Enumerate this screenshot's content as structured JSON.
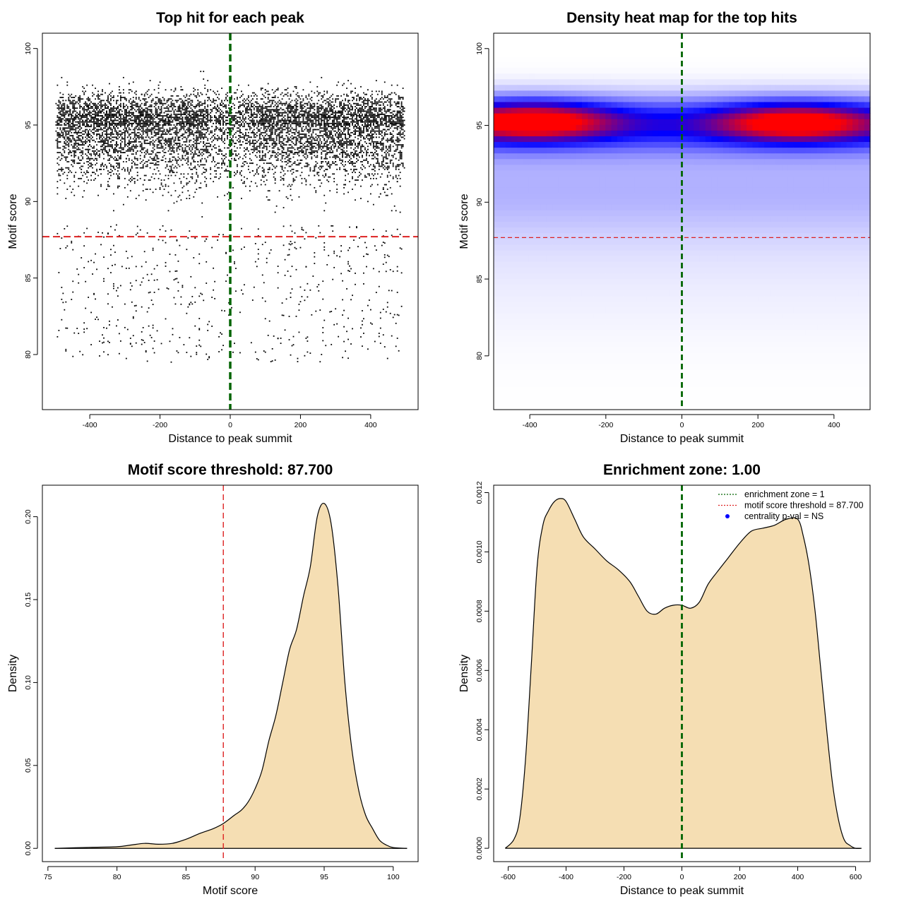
{
  "chart_data": [
    {
      "id": "scatter",
      "type": "scatter",
      "title": "Top hit for each peak",
      "xlabel": "Distance to peak summit",
      "ylabel": "Motif score",
      "xlim": [
        -535,
        535
      ],
      "ylim": [
        76.4,
        101.0
      ],
      "xticks": [
        -400,
        -200,
        0,
        200,
        400
      ],
      "yticks": [
        80,
        85,
        90,
        95,
        100
      ],
      "hlines": [
        {
          "y": 87.7,
          "color": "#dd2222",
          "style": "dashed"
        }
      ],
      "vlines": [
        {
          "x": 0,
          "color": "#006400",
          "style": "dashed"
        }
      ],
      "point_color": "#000000",
      "distribution": {
        "x_range": [
          -495,
          495
        ],
        "score_center": 95.0,
        "score_max": 100,
        "score_min": 76.5,
        "n_points": 9000,
        "seed": 7
      }
    },
    {
      "id": "heatmap",
      "type": "heatmap",
      "title": "Density heat map for the top hits",
      "xlabel": "Distance to peak summit",
      "ylabel": "Motif score",
      "xlim": [
        -495,
        495
      ],
      "ylim": [
        76.5,
        101.0
      ],
      "xticks": [
        -400,
        -200,
        0,
        200,
        400
      ],
      "yticks": [
        80,
        85,
        90,
        95,
        100
      ],
      "hlines": [
        {
          "y": 87.7,
          "color": "#dd2222",
          "style": "dashed"
        }
      ],
      "vlines": [
        {
          "x": 0,
          "color": "#006400",
          "style": "dashed"
        }
      ],
      "colors": [
        "#ffffff",
        "#0000ff",
        "#ff0000"
      ],
      "hotspots": [
        {
          "x": -395,
          "y": 95.3,
          "weight": 1.0
        },
        {
          "x": 300,
          "y": 95.2,
          "weight": 0.95
        }
      ],
      "band": {
        "y": 95.1,
        "weight": 0.7
      }
    },
    {
      "id": "density-score",
      "type": "area",
      "title": "Motif score threshold: 87.700",
      "xlabel": "Motif score",
      "ylabel": "Density",
      "xlim": [
        74.6,
        101.8
      ],
      "ylim": [
        -0.008,
        0.219
      ],
      "xticks": [
        75,
        80,
        85,
        90,
        95,
        100
      ],
      "yticks": [
        0.0,
        0.05,
        0.1,
        0.15,
        0.2
      ],
      "ytick_labels": [
        "0.00",
        "0.05",
        "0.10",
        "0.15",
        "0.20"
      ],
      "fill": "#f5deb3",
      "vlines": [
        {
          "x": 87.7,
          "color": "#dd2222",
          "style": "dashed"
        }
      ],
      "x": [
        75.5,
        78,
        80,
        81,
        82,
        83,
        84,
        85,
        86,
        87,
        87.7,
        88.5,
        89,
        89.5,
        90,
        90.5,
        91,
        91.5,
        92,
        92.5,
        93,
        93.5,
        94,
        94.5,
        95,
        95.5,
        96,
        96.5,
        97,
        97.5,
        98,
        98.5,
        99,
        99.5,
        100,
        101
      ],
      "y": [
        0.0,
        0.0006,
        0.001,
        0.002,
        0.003,
        0.0025,
        0.003,
        0.0055,
        0.009,
        0.012,
        0.015,
        0.02,
        0.023,
        0.028,
        0.036,
        0.047,
        0.065,
        0.08,
        0.1,
        0.12,
        0.132,
        0.152,
        0.17,
        0.2,
        0.208,
        0.196,
        0.158,
        0.1,
        0.06,
        0.035,
        0.02,
        0.012,
        0.005,
        0.002,
        0.0005,
        0.0
      ]
    },
    {
      "id": "density-distance",
      "type": "area",
      "title": "Enrichment zone: 1.00",
      "xlabel": "Distance to peak summit",
      "ylabel": "Density",
      "xlim": [
        -650,
        650
      ],
      "ylim": [
        -4.5e-05,
        0.001225
      ],
      "xticks": [
        -600,
        -400,
        -200,
        0,
        200,
        400,
        600
      ],
      "yticks": [
        0.0,
        0.0002,
        0.0004,
        0.0006,
        0.0008,
        0.001,
        0.0012
      ],
      "ytick_labels": [
        "0.0000",
        "0.0002",
        "0.0004",
        "0.0006",
        "0.0008",
        "0.0010",
        "0.0012"
      ],
      "fill": "#f5deb3",
      "vlines": [
        {
          "x": 0,
          "color": "#006400",
          "style": "dashed"
        }
      ],
      "x": [
        -610,
        -580,
        -560,
        -540,
        -520,
        -500,
        -480,
        -460,
        -440,
        -420,
        -400,
        -370,
        -340,
        -300,
        -260,
        -220,
        -180,
        -150,
        -120,
        -90,
        -60,
        -30,
        0,
        30,
        60,
        90,
        120,
        160,
        200,
        240,
        280,
        320,
        360,
        400,
        420,
        440,
        460,
        480,
        500,
        520,
        540,
        560,
        580,
        600,
        620
      ],
      "y": [
        0.0,
        3e-05,
        0.0001,
        0.0003,
        0.00062,
        0.00095,
        0.00109,
        0.00114,
        0.00117,
        0.00118,
        0.00117,
        0.00111,
        0.00105,
        0.00101,
        0.00097,
        0.00094,
        0.0009,
        0.00085,
        0.0008,
        0.00079,
        0.00081,
        0.00082,
        0.00082,
        0.00081,
        0.00083,
        0.00089,
        0.00093,
        0.00098,
        0.00103,
        0.00107,
        0.00108,
        0.00109,
        0.00111,
        0.00111,
        0.00105,
        0.00095,
        0.0008,
        0.0006,
        0.0004,
        0.00022,
        0.0001,
        3e-05,
        1e-05,
        0.0,
        0.0
      ],
      "legend": [
        {
          "label": "enrichment zone = 1",
          "color": "#006400",
          "style": "dotted"
        },
        {
          "label": "motif score threshold = 87.700",
          "color": "#dd2222",
          "style": "dotted"
        },
        {
          "label": "centrality p-val = NS",
          "color": "#0000ff",
          "style": "point"
        }
      ]
    }
  ]
}
